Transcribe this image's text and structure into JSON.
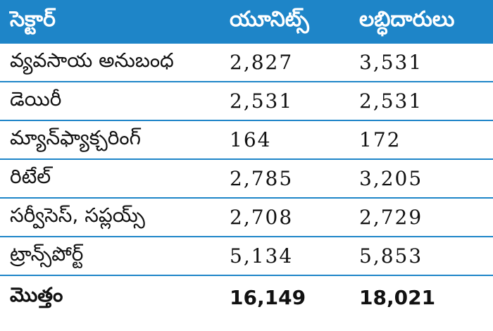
{
  "colors": {
    "accent": "#1e85c8"
  },
  "columns": [
    "సెక్టార్",
    "యూనిట్స్",
    "లబ్ధిదారులు"
  ],
  "rows": [
    {
      "sector": "వ్యవసాయ అనుబంధ",
      "units": "2,827",
      "beneficiaries": "3,531"
    },
    {
      "sector": "డెయిరీ",
      "units": "2,531",
      "beneficiaries": "2,531"
    },
    {
      "sector": "మ్యాన్‌ఫ్యాక్చరింగ్",
      "units": "164",
      "beneficiaries": "172"
    },
    {
      "sector": "రిటేల్",
      "units": "2,785",
      "beneficiaries": "3,205"
    },
    {
      "sector": "సర్వీసెస్, సప్లయ్స్",
      "units": "2,708",
      "beneficiaries": "2,729"
    },
    {
      "sector": "ట్రాన్స్‌పోర్ట్",
      "units": "5,134",
      "beneficiaries": "5,853"
    }
  ],
  "total": {
    "label": "మొత్తం",
    "units": "16,149",
    "beneficiaries": "18,021"
  }
}
